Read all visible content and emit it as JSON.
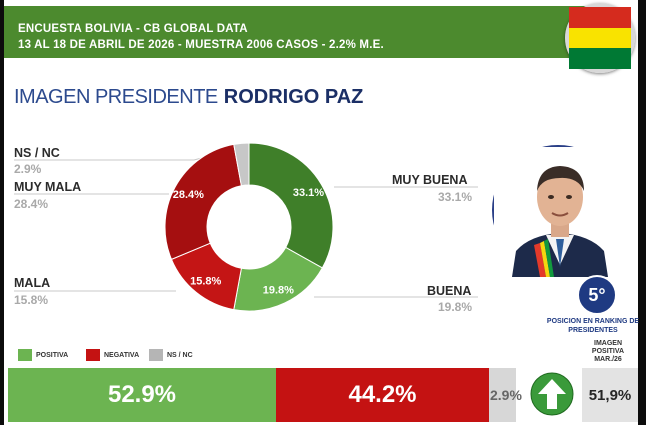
{
  "header": {
    "line1": "ENCUESTA BOLIVIA - CB GLOBAL DATA",
    "line2": "13 AL 18 DE ABRIL DE 2026 - MUESTRA 2006 CASOS - 2.2% M.E."
  },
  "title": {
    "prefix": "IMAGEN PRESIDENTE",
    "name": "RODRIGO PAZ"
  },
  "chart_data": {
    "type": "pie",
    "donut": true,
    "categories": [
      "MUY BUENA",
      "BUENA",
      "MALA",
      "MUY MALA",
      "NS / NC"
    ],
    "values": [
      33.1,
      19.8,
      15.8,
      28.4,
      2.9
    ],
    "labels": [
      "33.1%",
      "19.8%",
      "15.8%",
      "28.4%",
      ""
    ],
    "outer_values": [
      "33.1%",
      "19.8%",
      "15.8%",
      "28.4%",
      "2.9%"
    ],
    "colors": [
      "#3f7f29",
      "#6cb451",
      "#c41515",
      "#a50f10",
      "#c7c7c7"
    ],
    "legend": [
      {
        "label": "POSITIVA",
        "color": "#6cb451"
      },
      {
        "label": "NEGATIVA",
        "color": "#c41212"
      },
      {
        "label": "NS / NC",
        "color": "#b5b5b5"
      }
    ],
    "summary": [
      {
        "label": "52.9%",
        "value": 52.9,
        "color": "#6cb451"
      },
      {
        "label": "44.2%",
        "value": 44.2,
        "color": "#c41212"
      },
      {
        "label": "2.9%",
        "value": 2.9,
        "color": "#d7d7d7"
      }
    ]
  },
  "ranking": {
    "position": "5°",
    "caption": "POSICION EN RANKING DE PRESIDENTES"
  },
  "image_previous": {
    "caption": "IMAGEN POSITIVA MAR./26",
    "value": "51,9%",
    "trend_icon": "arrow-up-icon"
  },
  "flag_colors": [
    "#d52b1e",
    "#f9e300",
    "#007934"
  ]
}
